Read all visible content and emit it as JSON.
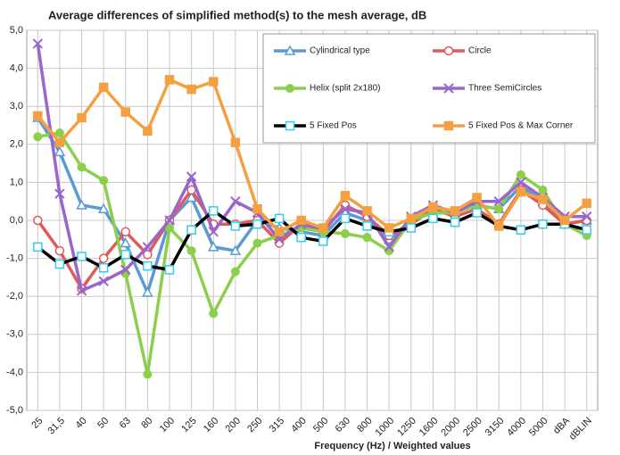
{
  "chart_data": {
    "type": "line",
    "title": "Average differences of simplified method(s) to the mesh average, dB",
    "x_label": "Frequency (Hz)  /  Weighted values",
    "categories": [
      "25",
      "31,5",
      "40",
      "50",
      "63",
      "80",
      "100",
      "125",
      "160",
      "200",
      "250",
      "315",
      "400",
      "500",
      "630",
      "800",
      "1000",
      "1250",
      "1600",
      "2000",
      "2500",
      "3150",
      "4000",
      "5000",
      "dBA",
      "dBLIN"
    ],
    "ylim": [
      -5,
      5
    ],
    "yticks": [
      {
        "value": -5,
        "label": "-5,0"
      },
      {
        "value": -4,
        "label": "-4,0"
      },
      {
        "value": -3,
        "label": "-3,0"
      },
      {
        "value": -2,
        "label": "-2,0"
      },
      {
        "value": -1,
        "label": "-1,0"
      },
      {
        "value": 0,
        "label": "0,0"
      },
      {
        "value": 1,
        "label": "1,0"
      },
      {
        "value": 2,
        "label": "2,0"
      },
      {
        "value": 3,
        "label": "3,0"
      },
      {
        "value": 4,
        "label": "4,0"
      },
      {
        "value": 5,
        "label": "5,0"
      }
    ],
    "grid": true,
    "legend": "top-right",
    "series": [
      {
        "name": "Cylindrical type",
        "color": "#5b9bd5",
        "marker": "triangle",
        "values": [
          2.7,
          1.8,
          0.4,
          0.3,
          -0.6,
          -1.9,
          0.0,
          0.6,
          -0.7,
          -0.8,
          0.0,
          -0.2,
          -0.3,
          -0.4,
          0.2,
          0.0,
          -0.5,
          0.0,
          0.2,
          0.2,
          0.4,
          0.3,
          0.9,
          0.5,
          -0.1,
          0.0
        ]
      },
      {
        "name": "Circle",
        "color": "#e05a5a",
        "marker": "circle",
        "values": [
          0.0,
          -0.8,
          -1.8,
          -1.0,
          -0.3,
          -0.9,
          0.0,
          0.8,
          -0.1,
          -0.1,
          0.0,
          -0.6,
          -0.1,
          -0.3,
          0.4,
          0.1,
          -0.4,
          -0.1,
          0.3,
          0.1,
          0.3,
          -0.1,
          0.8,
          0.4,
          -0.1,
          0.0
        ]
      },
      {
        "name": "Helix (split 2x180)",
        "color": "#8ccf4d",
        "marker": "dot",
        "values": [
          2.2,
          2.3,
          1.4,
          1.05,
          -1.4,
          -4.05,
          -0.2,
          -0.8,
          -2.45,
          -1.35,
          -0.6,
          -0.4,
          -0.2,
          -0.3,
          -0.35,
          -0.45,
          -0.8,
          0.0,
          0.2,
          0.2,
          0.4,
          0.3,
          1.2,
          0.8,
          -0.1,
          -0.4
        ]
      },
      {
        "name": "Three SemiCircles",
        "color": "#9966cc",
        "marker": "cross",
        "values": [
          4.65,
          0.7,
          -1.85,
          -1.6,
          -1.3,
          -0.7,
          0.0,
          1.15,
          -0.3,
          0.5,
          0.2,
          -0.5,
          -0.1,
          -0.2,
          0.3,
          0.2,
          -0.7,
          0.1,
          0.4,
          0.2,
          0.5,
          0.5,
          1.0,
          0.6,
          0.1,
          0.1
        ]
      },
      {
        "name": "5 Fixed Pos",
        "color": "#000000",
        "marker_color": "#33ccee",
        "marker": "square",
        "values": [
          -0.7,
          -1.15,
          -0.95,
          -1.25,
          -0.9,
          -1.2,
          -1.3,
          -0.25,
          0.25,
          -0.15,
          -0.1,
          0.05,
          -0.45,
          -0.55,
          0.05,
          -0.15,
          -0.3,
          -0.2,
          0.05,
          -0.05,
          0.2,
          -0.15,
          -0.25,
          -0.1,
          -0.1,
          -0.25
        ]
      },
      {
        "name": "5 Fixed Pos & Max Corner",
        "color": "#f5a040",
        "marker": "square",
        "values": [
          2.75,
          2.05,
          2.7,
          3.5,
          2.85,
          2.35,
          3.7,
          3.45,
          3.65,
          2.05,
          0.3,
          -0.3,
          0.0,
          -0.2,
          0.65,
          0.25,
          -0.2,
          0.05,
          0.35,
          0.25,
          0.6,
          -0.15,
          0.75,
          0.55,
          0.0,
          0.45
        ]
      }
    ]
  }
}
